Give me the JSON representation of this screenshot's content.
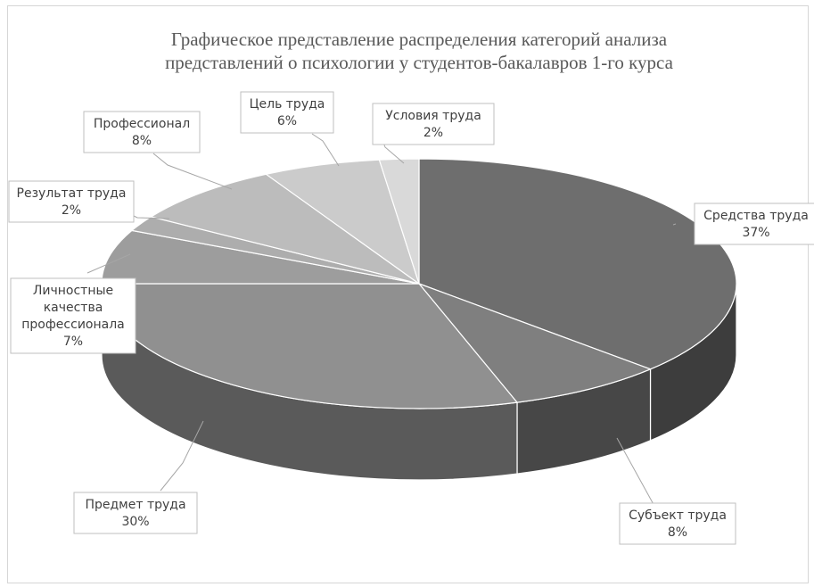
{
  "chart_data": {
    "type": "pie",
    "style": "3d-pie",
    "title": "Графическое представление распределения категорий анализа представлений о психологии у студентов-бакалавров 1-го курса",
    "title_lines": [
      "Графическое представление распределения категорий анализа",
      "представлений о психологии у студентов-бакалавров 1-го курса"
    ],
    "legend": "none",
    "data_labels": "category and percent, outside with leader lines",
    "slices": [
      {
        "name": "Средства труда",
        "name_lines": [
          "Средства труда"
        ],
        "value": 37,
        "value_label": "37%",
        "color": "#6e6e6e",
        "side_color": "#3d3d3d"
      },
      {
        "name": "Субъект труда",
        "name_lines": [
          "Субъект труда"
        ],
        "value": 8,
        "value_label": "8%",
        "color": "#7f7f7f",
        "side_color": "#474747"
      },
      {
        "name": "Предмет труда",
        "name_lines": [
          "Предмет труда"
        ],
        "value": 30,
        "value_label": "30%",
        "color": "#909090",
        "side_color": "#5a5a5a"
      },
      {
        "name": "Личностные качества профессионала",
        "name_lines": [
          "Личностные",
          "качества",
          "профессионала"
        ],
        "value": 7,
        "value_label": "7%",
        "color": "#9d9d9d",
        "side_color": "#707070"
      },
      {
        "name": "Результат труда",
        "name_lines": [
          "Результат труда"
        ],
        "value": 2,
        "value_label": "2%",
        "color": "#adadad",
        "side_color": "#808080"
      },
      {
        "name": "Профессионал",
        "name_lines": [
          "Профессионал"
        ],
        "value": 8,
        "value_label": "8%",
        "color": "#bcbcbc",
        "side_color": "#8c8c8c"
      },
      {
        "name": "Цель труда",
        "name_lines": [
          "Цель труда"
        ],
        "value": 6,
        "value_label": "6%",
        "color": "#cbcbcb",
        "side_color": "#9a9a9a"
      },
      {
        "name": "Условия труда",
        "name_lines": [
          "Условия труда"
        ],
        "value": 2,
        "value_label": "2%",
        "color": "#d9d9d9",
        "side_color": "#a6a6a6"
      }
    ]
  }
}
